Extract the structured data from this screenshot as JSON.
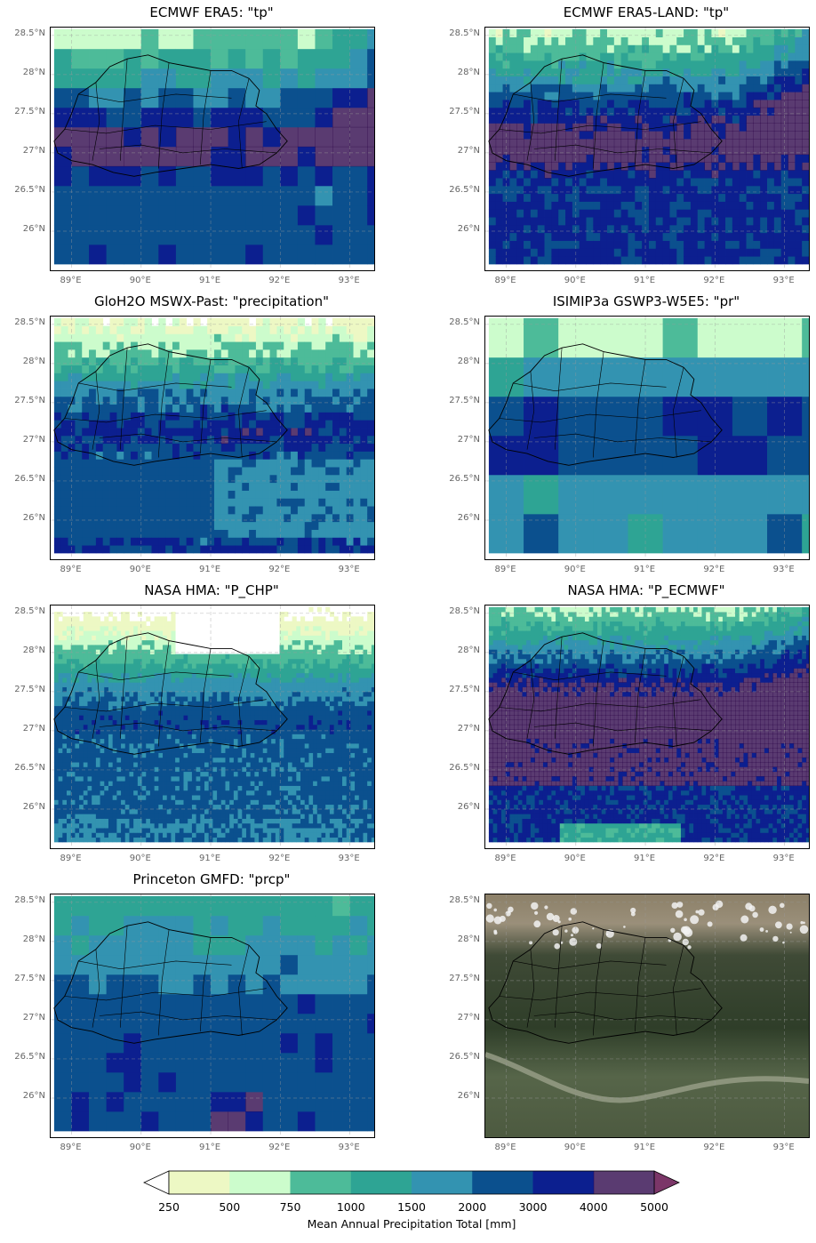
{
  "chart_data": {
    "type": "heatmap",
    "grid": true,
    "panels": [
      {
        "id": "era5",
        "title": "ECMWF ERA5: \"tp\"",
        "style": "coarse",
        "has_title": true
      },
      {
        "id": "era5land",
        "title": "ECMWF ERA5-LAND: \"tp\"",
        "style": "medium",
        "has_title": true
      },
      {
        "id": "mswx",
        "title": "GloH2O MSWX-Past: \"precipitation\"",
        "style": "medium-dry",
        "has_title": true
      },
      {
        "id": "isimip",
        "title": "ISIMIP3a GSWP3-W5E5: \"pr\"",
        "style": "very-coarse",
        "has_title": true
      },
      {
        "id": "hma_chp",
        "title": "NASA HMA: \"P_CHP\"",
        "style": "fine-dry",
        "has_title": true
      },
      {
        "id": "hma_ecmwf",
        "title": "NASA HMA: \"P_ECMWF\"",
        "style": "fine-wet",
        "has_title": true
      },
      {
        "id": "gmfd",
        "title": "Princeton GMFD: \"prcp\"",
        "style": "coarse-moderate",
        "has_title": true
      },
      {
        "id": "satellite",
        "title": "",
        "style": "satellite",
        "has_title": false
      }
    ],
    "x_ticks": [
      "89°E",
      "90°E",
      "91°E",
      "92°E",
      "93°E"
    ],
    "y_ticks": [
      "28.5°N",
      "28°N",
      "27.5°N",
      "27°N",
      "26.5°N",
      "26°N"
    ],
    "xlim": [
      88.7,
      93.35
    ],
    "ylim": [
      25.5,
      28.6
    ],
    "colorbar": {
      "boundaries": [
        250,
        500,
        750,
        1000,
        1500,
        2000,
        3000,
        4000,
        5000
      ],
      "tick_labels": [
        "250",
        "500",
        "750",
        "1000",
        "1500",
        "2000",
        "3000",
        "4000",
        "5000"
      ],
      "colors": [
        "#edf8c4",
        "#ccfccc",
        "#4dbb99",
        "#2ea494",
        "#3393b1",
        "#0b508e",
        "#0c1f8f",
        "#2c0449"
      ],
      "extend": "both",
      "label": "Mean Annual Precipitation Total [mm]"
    }
  }
}
